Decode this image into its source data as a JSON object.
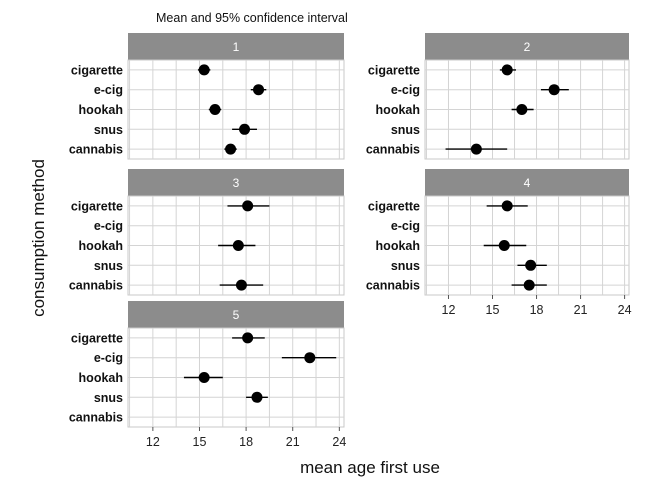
{
  "chart_data": {
    "type": "scatter",
    "title": "Mean and 95% confidence interval",
    "xlabel": "mean age first use",
    "ylabel": "consumption method",
    "categories": [
      "cigarette",
      "e-cig",
      "hookah",
      "snus",
      "cannabis"
    ],
    "xlim": [
      10.4,
      24.3
    ],
    "xticks": [
      12,
      15,
      18,
      21,
      24
    ],
    "grid": true,
    "colors": {
      "strip": "#8c8c8c",
      "point": "#000000",
      "grid": "#d4d4d4"
    },
    "panels": [
      {
        "label": "1",
        "points": [
          {
            "category": "cigarette",
            "mean": 15.3,
            "lo": 14.9,
            "hi": 15.7
          },
          {
            "category": "e-cig",
            "mean": 18.8,
            "lo": 18.3,
            "hi": 19.3
          },
          {
            "category": "hookah",
            "mean": 16.0,
            "lo": 15.6,
            "hi": 16.4
          },
          {
            "category": "snus",
            "mean": 17.9,
            "lo": 17.1,
            "hi": 18.7
          },
          {
            "category": "cannabis",
            "mean": 17.0,
            "lo": 16.6,
            "hi": 17.4
          }
        ]
      },
      {
        "label": "2",
        "points": [
          {
            "category": "cigarette",
            "mean": 16.0,
            "lo": 15.5,
            "hi": 16.6
          },
          {
            "category": "e-cig",
            "mean": 19.2,
            "lo": 18.3,
            "hi": 20.2
          },
          {
            "category": "hookah",
            "mean": 17.0,
            "lo": 16.3,
            "hi": 17.8
          },
          {
            "category": "cannabis",
            "mean": 13.9,
            "lo": 11.8,
            "hi": 16.0
          }
        ]
      },
      {
        "label": "3",
        "points": [
          {
            "category": "cigarette",
            "mean": 18.1,
            "lo": 16.8,
            "hi": 19.5
          },
          {
            "category": "hookah",
            "mean": 17.5,
            "lo": 16.2,
            "hi": 18.6
          },
          {
            "category": "cannabis",
            "mean": 17.7,
            "lo": 16.3,
            "hi": 19.1
          }
        ]
      },
      {
        "label": "4",
        "points": [
          {
            "category": "cigarette",
            "mean": 16.0,
            "lo": 14.6,
            "hi": 17.4
          },
          {
            "category": "hookah",
            "mean": 15.8,
            "lo": 14.4,
            "hi": 17.3
          },
          {
            "category": "snus",
            "mean": 17.6,
            "lo": 16.7,
            "hi": 18.7
          },
          {
            "category": "cannabis",
            "mean": 17.5,
            "lo": 16.3,
            "hi": 18.7
          }
        ]
      },
      {
        "label": "5",
        "points": [
          {
            "category": "cigarette",
            "mean": 18.1,
            "lo": 17.1,
            "hi": 19.2
          },
          {
            "category": "e-cig",
            "mean": 22.1,
            "lo": 20.3,
            "hi": 23.8
          },
          {
            "category": "hookah",
            "mean": 15.3,
            "lo": 14.0,
            "hi": 16.5
          },
          {
            "category": "snus",
            "mean": 18.7,
            "lo": 18.0,
            "hi": 19.4
          }
        ]
      }
    ]
  }
}
